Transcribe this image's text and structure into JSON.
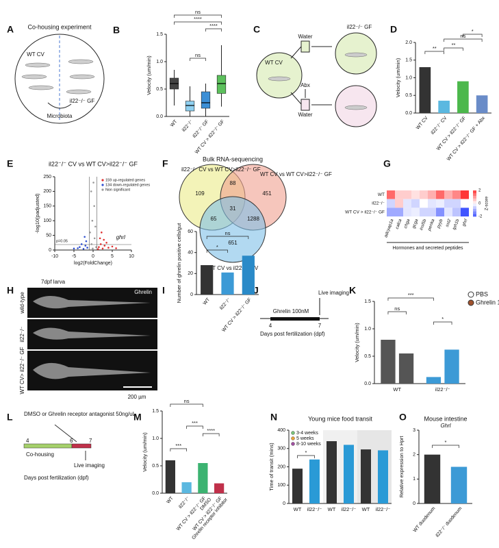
{
  "panels": {
    "A": {
      "letter": "A",
      "title": "Co-housing experiment",
      "left": "WT CV",
      "right": "il22⁻/⁻ GF",
      "arrow": "Microbiota"
    },
    "C": {
      "letter": "C",
      "source": "WT CV",
      "water_top": "Water",
      "abx": "Abx",
      "water_bottom": "Water",
      "target": "il22⁻/⁻ GF"
    },
    "F": {
      "letter": "F",
      "title": "Bulk RNA-sequencing",
      "set_left": "il22⁻/⁻ CV vs WT CV>il22⁻/⁻ GF",
      "set_right": "WT CV vs WT CV>il22⁻/⁻ GF",
      "set_bottom": "WT CV vs il22⁻/⁻ CV",
      "counts": [
        "109",
        "88",
        "451",
        "65",
        "31",
        "1288",
        "651"
      ]
    },
    "H": {
      "letter": "H",
      "title": "7dpf larva",
      "stain": "Ghrelin",
      "rows": [
        "wild-type",
        "il22⁻/⁻",
        "WT CV> il22⁻/⁻ GF"
      ],
      "scale": "200 µm"
    },
    "J": {
      "letter": "J",
      "treatment": "Ghrelin 100nM",
      "imaging": "Live imaging",
      "ticks": [
        "4",
        "7"
      ],
      "axis": "Days post fertilization (dpf)"
    },
    "L": {
      "letter": "L",
      "treatment": "DMSO or Ghrelin receptor antagonist 50ng/uL",
      "ticks": [
        "4",
        "6",
        "7"
      ],
      "phase": "Co-housing",
      "imaging": "Live imaging",
      "axis": "Days post fertilization (dpf)"
    }
  },
  "chart_data": [
    {
      "type": "box",
      "panel": "B",
      "ylabel": "Velocity (um/min)",
      "categories": [
        "WT",
        "il22⁻/⁻",
        "il22⁻/⁻ GF",
        "WT CV > il22⁻/⁻ GF"
      ],
      "colors": [
        "#444444",
        "#8fd0f0",
        "#3c8fd6",
        "#5cc05c"
      ],
      "boxes": [
        {
          "min": 0.2,
          "q1": 0.5,
          "median": 0.6,
          "q3": 0.7,
          "max": 0.85
        },
        {
          "min": 0,
          "q1": 0.1,
          "median": 0.2,
          "q3": 0.28,
          "max": 0.55
        },
        {
          "min": 0,
          "q1": 0.15,
          "median": 0.25,
          "q3": 0.45,
          "max": 0.6
        },
        {
          "min": 0.18,
          "q1": 0.42,
          "median": 0.6,
          "q3": 0.75,
          "max": 1.3
        }
      ],
      "ylim": [
        0,
        1.5
      ],
      "yticks": [
        {
          "value": 0,
          "label": "0.0"
        },
        0.5,
        {
          "value": 1,
          "label": "1.0"
        },
        1.5
      ],
      "annotations": [
        "ns",
        "****",
        "****",
        "ns"
      ]
    },
    {
      "type": "bar",
      "panel": "D",
      "ylabel": "Velocity (um/min)",
      "categories": [
        "WT CV",
        "il22⁻/⁻ CV",
        "WT CV > il22⁻/⁻ GF",
        "WT CV > il22⁻/⁻ GF + Abx"
      ],
      "values": [
        1.3,
        0.35,
        0.9,
        0.5
      ],
      "colors": [
        "#333333",
        "#5bb8e0",
        "#4cb84c",
        "#6a8cc8"
      ],
      "ylim": [
        0,
        2
      ],
      "yticks": [
        {
          "value": 0,
          "label": "0.0"
        },
        0.5,
        {
          "value": 1,
          "label": "1.0"
        },
        1.5,
        {
          "value": 2,
          "label": "2.0"
        }
      ],
      "annotations": [
        "**",
        "**",
        "ns",
        "*"
      ]
    },
    {
      "type": "scatter",
      "panel": "E",
      "title": "il22⁻/⁻ CV vs WT CV>il22⁻/⁻ GF",
      "xlabel": "log2(FoldChange)",
      "ylabel": "-log10(padjusted)",
      "series": [
        {
          "name": "159 up-regulated genes",
          "color": "#e03030",
          "x": [
            1.5,
            2,
            2.5,
            3,
            1.8,
            4,
            2.2,
            3.5,
            1.3,
            5,
            2.8,
            6
          ],
          "y": [
            10,
            20,
            5,
            15,
            40,
            8,
            60,
            25,
            3,
            12,
            35,
            6
          ]
        },
        {
          "name": "134 down-regulated genes",
          "color": "#3050d0",
          "x": [
            -1.5,
            -2,
            -2.5,
            -3,
            -1.8,
            -4,
            -2.2,
            -3.5,
            -5
          ],
          "y": [
            8,
            15,
            4,
            20,
            30,
            6,
            45,
            10,
            5
          ]
        },
        {
          "name": "Non significant",
          "color": "#999999",
          "x": [
            -0.5,
            0.3,
            -0.2,
            0.6,
            -0.8,
            0.1,
            0.4,
            -0.4,
            0.8,
            -0.1
          ],
          "y": [
            200,
            150,
            100,
            80,
            60,
            230,
            40,
            20,
            10,
            5
          ]
        }
      ],
      "xlim": [
        -10,
        10
      ],
      "xticks": [
        -10,
        -5,
        0,
        5,
        10
      ],
      "ylim": [
        0,
        250
      ],
      "yticks": [
        0,
        50,
        100,
        150,
        200,
        250
      ],
      "annotations": [
        "p=0.05",
        "ghrl"
      ]
    },
    {
      "type": "heatmap",
      "panel": "G",
      "rows": [
        "WT",
        "il22⁻/⁻",
        "WT CV > il22⁻/⁻ GF"
      ],
      "columns": [
        "adcyap1a",
        "calca",
        "chga",
        "gcga",
        "insl5b",
        "penka",
        "pyyb",
        "sst2",
        "tph1b",
        "ghrl"
      ],
      "z": [
        [
          1.5,
          0.5,
          0.5,
          0.3,
          0.5,
          0.8,
          1.5,
          0.8,
          1.2,
          2
        ],
        [
          -0.5,
          0.5,
          -0.3,
          -0.5,
          0,
          -0.3,
          -0.2,
          -0.5,
          -0.5,
          0
        ],
        [
          -1,
          -1,
          -0.3,
          -0.2,
          -0.5,
          -0.5,
          -1.3,
          -0.3,
          -0.7,
          -2
        ]
      ],
      "zlim": [
        -2,
        2
      ],
      "zticks": [
        2,
        0,
        -2
      ],
      "legend_title": "Z-score",
      "xlabel": "Hormones and secreted peptides"
    },
    {
      "type": "bar",
      "panel": "I",
      "ylabel": "Number of ghrelin positive cells/gut",
      "categories": [
        "WT",
        "il22⁻/⁻",
        "WT CV > il22⁻/⁻ GF"
      ],
      "values": [
        28,
        21,
        37
      ],
      "colors": [
        "#333333",
        "#3c9ad6",
        "#2a8ac8"
      ],
      "ylim": [
        0,
        60
      ],
      "yticks": [
        0,
        20,
        40,
        60
      ],
      "annotations": [
        "*",
        "ns"
      ]
    },
    {
      "type": "grouped_bar",
      "panel": "K",
      "ylabel": "Velocity (um/min)",
      "categories": [
        "WT",
        "il22⁻/⁻"
      ],
      "bar_colors": [
        "#555555",
        "#3c9ad6"
      ],
      "series": [
        {
          "name": "PBS",
          "color": "#ffffff",
          "values": [
            0.8,
            0.12
          ]
        },
        {
          "name": "Ghrelin 100nM",
          "color": "#a0522d",
          "values": [
            0.55,
            0.62
          ]
        }
      ],
      "ylim": [
        0,
        1.5
      ],
      "yticks": [
        {
          "value": 0,
          "label": "0.0"
        },
        0.5,
        {
          "value": 1,
          "label": "1.0"
        },
        1.5
      ],
      "annotations": [
        "***",
        "ns",
        "*"
      ]
    },
    {
      "type": "bar",
      "panel": "M",
      "ylabel": "Velocity (um/min)",
      "categories": [
        "WT",
        "il22⁻/⁻",
        "WT CV > il22⁻/⁻ GF",
        "WT CV > il22⁻/⁻ GF"
      ],
      "category_notes": [
        null,
        null,
        "DMSO",
        "Ghrelin receptor inhibitor"
      ],
      "values": [
        0.6,
        0.2,
        0.55,
        0.18
      ],
      "colors": [
        "#333333",
        "#5bb8e0",
        "#3cb371",
        "#c0304a"
      ],
      "ylim": [
        0,
        1.5
      ],
      "yticks": [
        {
          "value": 0,
          "label": "0.0"
        },
        0.5,
        {
          "value": 1,
          "label": "1.0"
        },
        1.5
      ],
      "annotations": [
        "ns",
        "***",
        "***",
        "****"
      ]
    },
    {
      "type": "bar",
      "panel": "N",
      "title": "Young mice food transit",
      "ylabel": "Time of transit (mins)",
      "categories": [
        "WT",
        "il22⁻/⁻",
        "WT",
        "il22⁻/⁻",
        "WT",
        "il22⁻/⁻"
      ],
      "values": [
        190,
        240,
        340,
        320,
        295,
        290
      ],
      "colors": [
        "#333333",
        "#2a9ad6",
        "#333333",
        "#2a9ad6",
        "#333333",
        "#2a9ad6"
      ],
      "legend": [
        {
          "name": "3-4 weeks",
          "color": "#7ac27a"
        },
        {
          "name": "5 weeks",
          "color": "#e8a33d"
        },
        {
          "name": "8-10 weeks",
          "color": "#a050a0"
        }
      ],
      "ylim": [
        0,
        400
      ],
      "yticks": [
        0,
        100,
        200,
        300,
        400
      ],
      "annotations": [
        "*"
      ]
    },
    {
      "type": "bar",
      "panel": "O",
      "title": "Mouse intestine",
      "subtitle": "Ghrl",
      "ylabel": "Relative expression to Hprt",
      "categories": [
        "WT duodenum",
        "il22⁻/⁻ duodenum"
      ],
      "values": [
        2,
        1.5
      ],
      "colors": [
        "#333333",
        "#3c9ad6"
      ],
      "ylim": [
        0,
        3
      ],
      "yticks": [
        0,
        1,
        2,
        3
      ],
      "annotations": [
        "*"
      ]
    }
  ]
}
